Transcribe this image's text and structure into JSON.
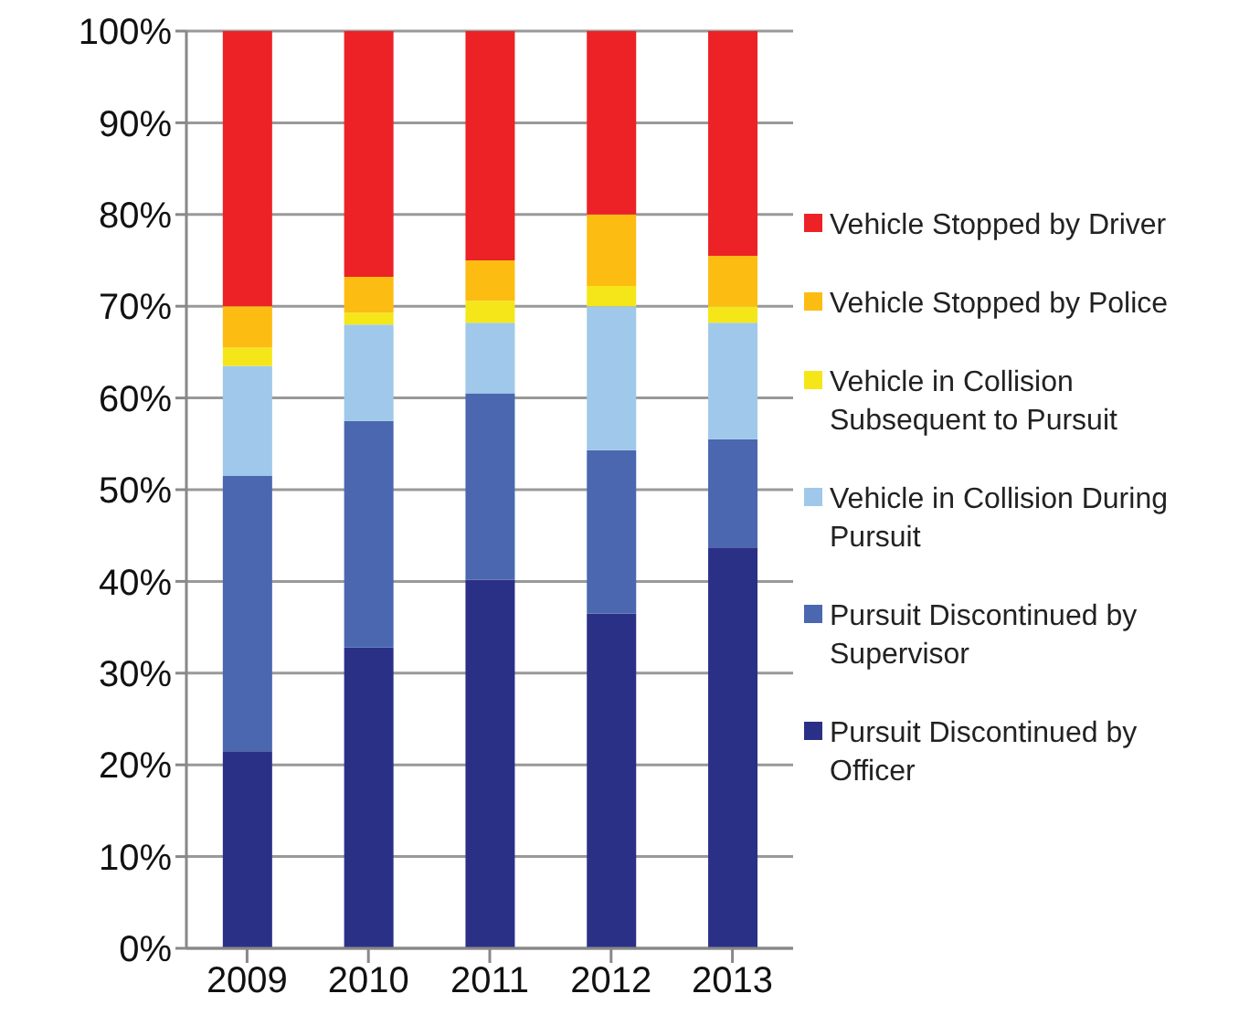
{
  "chart_data": {
    "type": "bar",
    "stacked": true,
    "categories": [
      "2009",
      "2010",
      "2011",
      "2012",
      "2013"
    ],
    "series": [
      {
        "name": "Pursuit Discontinued by Officer",
        "color": "#2b3087",
        "values": [
          21.5,
          32.8,
          40.2,
          36.5,
          43.7
        ]
      },
      {
        "name": "Pursuit Discontinued by Supervisor",
        "color": "#4a67b0",
        "values": [
          30,
          24.7,
          20.3,
          17.8,
          11.8
        ]
      },
      {
        "name": "Vehicle in Collision During Pursuit",
        "color": "#9fc8ea",
        "values": [
          12,
          10.5,
          7.7,
          15.7,
          12.7
        ]
      },
      {
        "name": "Vehicle in Collision Subsequent to Pursuit",
        "color": "#f5e619",
        "values": [
          2,
          1.3,
          2.4,
          2.2,
          1.8
        ]
      },
      {
        "name": "Vehicle Stopped by Police",
        "color": "#fcbc12",
        "values": [
          4.5,
          3.9,
          4.4,
          7.8,
          5.5
        ]
      },
      {
        "name": "Vehicle Stopped by Driver",
        "color": "#ec2227",
        "values": [
          30,
          26.8,
          25,
          20,
          24.5
        ]
      }
    ],
    "ylim": [
      0,
      100
    ],
    "yticks": [
      {
        "value": 0,
        "label": "0%"
      },
      {
        "value": 10,
        "label": "10%"
      },
      {
        "value": 20,
        "label": "20%"
      },
      {
        "value": 30,
        "label": "30%"
      },
      {
        "value": 40,
        "label": "40%"
      },
      {
        "value": 50,
        "label": "50%"
      },
      {
        "value": 60,
        "label": "60%"
      },
      {
        "value": 70,
        "label": "70%"
      },
      {
        "value": 80,
        "label": "80%"
      },
      {
        "value": 90,
        "label": "90%"
      },
      {
        "value": 100,
        "label": "100%"
      }
    ],
    "grid": "y",
    "legend": "right"
  }
}
